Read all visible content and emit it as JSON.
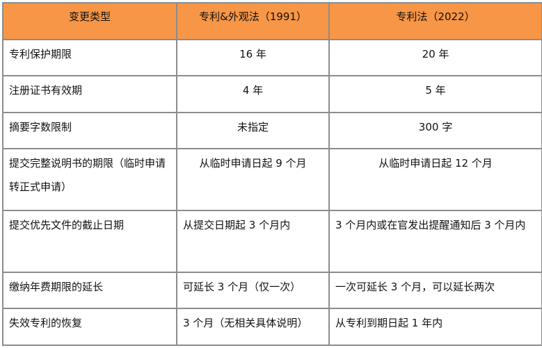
{
  "header": [
    "变更类型",
    "专利&外观法（1991）",
    "专利法（2022）"
  ],
  "rows": [
    [
      "专利保护期限",
      "16 年",
      "20 年"
    ],
    [
      "注册证书有效期",
      "4 年",
      "5 年"
    ],
    [
      "摘要字数限制",
      "未指定",
      "300 字"
    ],
    [
      "提交完整说明书的期限（临时申请转正式申请）",
      "从临时申请日起 9 个月",
      "从临时申请日起 12 个月"
    ],
    [
      "提交优先文件的截止日期",
      "从提交日期起 3 个月内",
      "3 个月内或在官发出提醒通知后 3 个月内"
    ],
    [
      "缴纳年费期限的延长",
      "可延长 3 个月（仅一次）",
      "一次可延长 3 个月，可以延长两次"
    ],
    [
      "失效专利的恢复",
      "3 个月（无相关具体说明）",
      "从专利到期日起 1 年内"
    ]
  ],
  "colors": {
    "header_bg": "#f79646",
    "border": "#8c8c8c"
  }
}
